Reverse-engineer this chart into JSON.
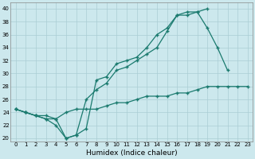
{
  "xlabel": "Humidex (Indice chaleur)",
  "xlim": [
    -0.5,
    23.5
  ],
  "ylim": [
    19.5,
    41
  ],
  "yticks": [
    20,
    22,
    24,
    26,
    28,
    30,
    32,
    34,
    36,
    38,
    40
  ],
  "xticks": [
    0,
    1,
    2,
    3,
    4,
    5,
    6,
    7,
    8,
    9,
    10,
    11,
    12,
    13,
    14,
    15,
    16,
    17,
    18,
    19,
    20,
    21,
    22,
    23
  ],
  "background_color": "#cce8ed",
  "line_color": "#1a7a6e",
  "grid_color": "#aacdd4",
  "line1_x": [
    0,
    1,
    2,
    3,
    4,
    5,
    6,
    7,
    8,
    9,
    10,
    11,
    12,
    13,
    14,
    15,
    16,
    17,
    18,
    19
  ],
  "line1_y": [
    24.5,
    24.0,
    23.5,
    23.0,
    22.0,
    20.0,
    20.5,
    21.5,
    29.0,
    29.5,
    31.5,
    32.0,
    32.5,
    34.0,
    36.0,
    37.0,
    39.0,
    39.5,
    39.5,
    40.0
  ],
  "line2_x": [
    0,
    1,
    2,
    3,
    4,
    5,
    6,
    7,
    8,
    9,
    10,
    11,
    12,
    13,
    14,
    15,
    16,
    17,
    18,
    19,
    20,
    21
  ],
  "line2_y": [
    24.5,
    24.0,
    23.5,
    23.5,
    23.0,
    20.0,
    20.5,
    26.0,
    27.5,
    28.5,
    30.5,
    31.0,
    32.0,
    33.0,
    34.0,
    36.5,
    39.0,
    39.0,
    39.5,
    37.0,
    34.0,
    30.5
  ],
  "line3_x": [
    0,
    1,
    2,
    3,
    4,
    5,
    6,
    7,
    8,
    9,
    10,
    11,
    12,
    13,
    14,
    15,
    16,
    17,
    18,
    19,
    20,
    21,
    22,
    23
  ],
  "line3_y": [
    24.5,
    24.0,
    23.5,
    23.0,
    23.0,
    24.0,
    24.5,
    24.5,
    24.5,
    25.0,
    25.5,
    25.5,
    26.0,
    26.5,
    26.5,
    26.5,
    27.0,
    27.0,
    27.5,
    28.0,
    28.0,
    28.0,
    28.0,
    28.0
  ]
}
